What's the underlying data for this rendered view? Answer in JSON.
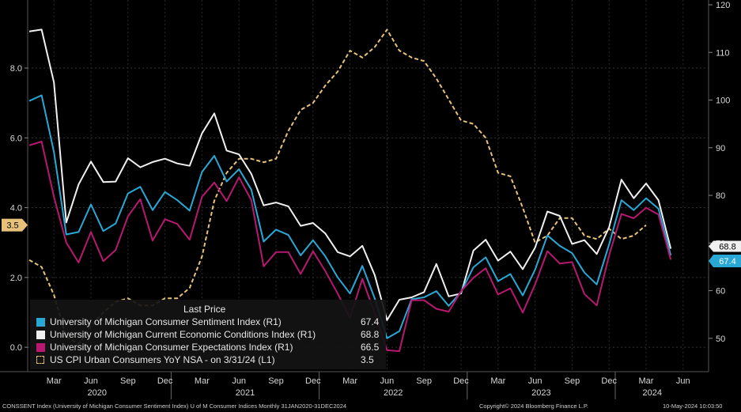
{
  "chart_data": {
    "type": "line",
    "left_axis": {
      "min": -0.7,
      "max": 9.95,
      "ticks": [
        0.0,
        2.0,
        4.0,
        6.0,
        8.0
      ],
      "tick_labels": [
        "0.0",
        "2.0",
        "4.0",
        "6.0",
        "8.0"
      ]
    },
    "right_axis": {
      "min": 43,
      "max": 121,
      "ticks": [
        50,
        60,
        70,
        80,
        90,
        100,
        110,
        120
      ],
      "tick_labels": [
        "50",
        "60",
        "70",
        "80",
        "90",
        "100",
        "110",
        "120"
      ]
    },
    "x_range": {
      "start": "2020-01",
      "end": "2024-06"
    },
    "x_month_labels": [
      {
        "m": 2,
        "label": "Mar"
      },
      {
        "m": 5,
        "label": "Jun"
      },
      {
        "m": 8,
        "label": "Sep"
      },
      {
        "m": 11,
        "label": "Dec"
      },
      {
        "m": 14,
        "label": "Mar"
      },
      {
        "m": 17,
        "label": "Jun"
      },
      {
        "m": 20,
        "label": "Sep"
      },
      {
        "m": 23,
        "label": "Dec"
      },
      {
        "m": 26,
        "label": "Mar"
      },
      {
        "m": 29,
        "label": "Jun"
      },
      {
        "m": 32,
        "label": "Sep"
      },
      {
        "m": 35,
        "label": "Dec"
      },
      {
        "m": 38,
        "label": "Mar"
      },
      {
        "m": 41,
        "label": "Jun"
      },
      {
        "m": 44,
        "label": "Sep"
      },
      {
        "m": 47,
        "label": "Dec"
      },
      {
        "m": 50,
        "label": "Mar"
      },
      {
        "m": 53,
        "label": "Jun"
      }
    ],
    "x_year_labels": [
      {
        "m": 5.5,
        "label": "2020"
      },
      {
        "m": 17.5,
        "label": "2021"
      },
      {
        "m": 29.5,
        "label": "2022"
      },
      {
        "m": 41.5,
        "label": "2023"
      },
      {
        "m": 50.5,
        "label": "2024"
      }
    ],
    "year_boundaries": [
      12,
      24,
      36,
      48
    ],
    "series": [
      {
        "name": "University of Michigan Consumer Sentiment Index  (R1)",
        "last": "67.4",
        "color": "#29a8d6",
        "axis": "right",
        "style": "solid",
        "values": [
          99.8,
          101.0,
          89.1,
          71.8,
          72.3,
          78.1,
          72.5,
          74.1,
          80.4,
          81.8,
          76.9,
          80.7,
          79.0,
          76.8,
          84.9,
          88.3,
          82.9,
          85.5,
          81.2,
          70.3,
          72.8,
          71.7,
          67.4,
          70.6,
          67.2,
          62.8,
          59.4,
          65.2,
          58.4,
          50.0,
          51.5,
          58.2,
          58.6,
          59.9,
          56.8,
          59.7,
          64.9,
          67.0,
          62.0,
          63.5,
          59.0,
          64.4,
          71.6,
          69.4,
          67.9,
          63.8,
          61.3,
          69.7,
          79.0,
          76.9,
          79.4,
          77.2,
          67.4
        ]
      },
      {
        "name": "University of Michigan Current Economic Conditions Index  (R1)",
        "last": "68.8",
        "color": "#f0f0f0",
        "axis": "right",
        "style": "solid",
        "values": [
          114.4,
          114.8,
          103.7,
          74.3,
          82.3,
          87.1,
          82.8,
          82.9,
          87.8,
          85.9,
          87.0,
          87.7,
          86.7,
          86.2,
          93.0,
          97.2,
          89.4,
          88.6,
          84.5,
          77.9,
          78.5,
          77.7,
          73.6,
          74.2,
          72.0,
          68.1,
          67.2,
          69.4,
          63.3,
          53.8,
          58.1,
          58.6,
          59.7,
          65.6,
          58.8,
          59.4,
          68.4,
          70.7,
          66.3,
          68.2,
          64.5,
          69.0,
          76.6,
          75.7,
          69.8,
          70.6,
          67.7,
          73.3,
          83.3,
          79.4,
          82.5,
          79.0,
          68.8
        ]
      },
      {
        "name": "University of Michigan Consumer Expectations Index  (R1)",
        "last": "66.5",
        "color": "#b81870",
        "axis": "right",
        "style": "solid",
        "values": [
          90.5,
          91.3,
          79.7,
          70.1,
          65.9,
          72.3,
          66.2,
          68.5,
          75.6,
          79.2,
          70.5,
          75.0,
          74.0,
          70.7,
          79.7,
          82.7,
          78.8,
          83.8,
          79.0,
          65.1,
          68.1,
          68.1,
          63.5,
          68.3,
          64.1,
          59.4,
          54.3,
          62.5,
          55.2,
          47.5,
          47.3,
          58.0,
          58.0,
          56.2,
          55.6,
          59.9,
          62.7,
          64.7,
          59.2,
          60.5,
          55.4,
          61.3,
          68.3,
          65.7,
          66.0,
          59.3,
          56.9,
          67.4,
          76.1,
          75.2,
          77.4,
          76.0,
          66.5
        ]
      },
      {
        "name": "US CPI Urban Consumers YoY NSA -  on 3/31/24  (L1)",
        "last": "3.5",
        "color": "#e8c27a",
        "axis": "left",
        "style": "dashed",
        "values": [
          2.5,
          2.3,
          1.5,
          0.3,
          0.1,
          0.6,
          1.0,
          1.3,
          1.4,
          1.2,
          1.2,
          1.4,
          1.4,
          1.7,
          2.6,
          4.2,
          5.0,
          5.4,
          5.4,
          5.3,
          5.4,
          6.2,
          6.8,
          7.0,
          7.5,
          7.9,
          8.5,
          8.3,
          8.6,
          9.1,
          8.5,
          8.3,
          8.2,
          7.7,
          7.1,
          6.5,
          6.4,
          6.0,
          5.0,
          4.9,
          4.0,
          3.0,
          3.2,
          3.7,
          3.7,
          3.2,
          3.1,
          3.4,
          3.1,
          3.2,
          3.5
        ]
      }
    ],
    "legend_title": "Last Price",
    "left_marker": "3.5",
    "right_markers": [
      "68.8",
      "67.4"
    ]
  },
  "footer": {
    "left": "CONSSENT Index (University of Michigan Consumer Sentiment Index) U of M Consumer Indices  Monthly 31JAN2020-31DEC2024",
    "center": "Copyright© 2024 Bloomberg Finance L.P.",
    "right": "10-May-2024 10:03:50"
  }
}
